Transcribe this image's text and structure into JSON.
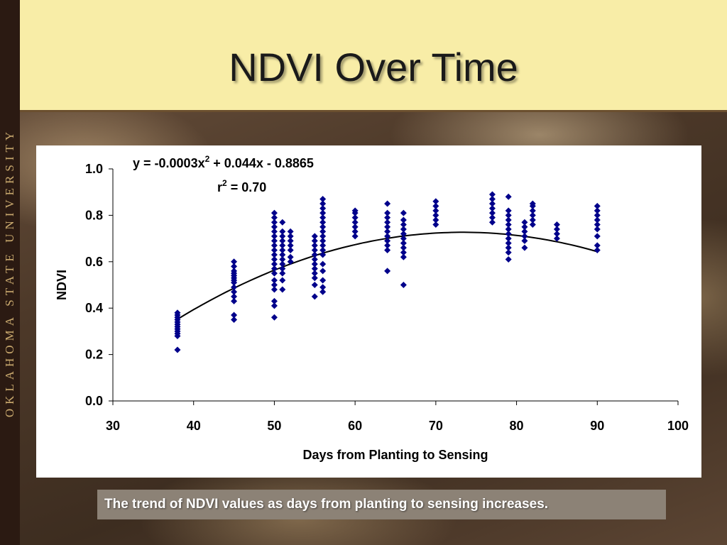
{
  "sidebar": {
    "text": "OKLAHOMA STATE UNIVERSITY"
  },
  "slide": {
    "title": "NDVI Over Time",
    "caption": "The trend of NDVI values as days from planting to sensing increases."
  },
  "colors": {
    "title_band": "#f8eda7",
    "sidebar_bg": "#2b1a12",
    "sidebar_text": "#c9a96e",
    "marker": "#00008b",
    "trendline": "#000000",
    "caption_bg": "#8c8276"
  },
  "chart_data": {
    "type": "scatter",
    "title": "",
    "xlabel": "Days from Planting to Sensing",
    "ylabel": "NDVI",
    "xlim": [
      30,
      100
    ],
    "ylim": [
      0.0,
      1.0
    ],
    "xticks": [
      "30",
      "40",
      "50",
      "60",
      "70",
      "80",
      "90",
      "100"
    ],
    "yticks": [
      "0.0",
      "0.2",
      "0.4",
      "0.6",
      "0.8",
      "1.0"
    ],
    "grid": false,
    "marker": "diamond",
    "annotation": {
      "equation_prefix": "y = -0.0003x",
      "equation_sup": "2",
      "equation_suffix": " + 0.044x - 0.8865",
      "r2_prefix": "r",
      "r2_sup": "2",
      "r2_suffix": " = 0.70"
    },
    "trendline": {
      "type": "polynomial",
      "coefficients": [
        -0.0003,
        0.044,
        -0.8865
      ],
      "x_range": [
        38,
        90
      ]
    },
    "series": [
      {
        "x": 38,
        "y": [
          0.22,
          0.28,
          0.29,
          0.3,
          0.31,
          0.32,
          0.33,
          0.34,
          0.35,
          0.36,
          0.37,
          0.38
        ]
      },
      {
        "x": 45,
        "y": [
          0.35,
          0.37,
          0.43,
          0.45,
          0.47,
          0.49,
          0.51,
          0.52,
          0.53,
          0.54,
          0.55,
          0.56,
          0.58,
          0.6
        ]
      },
      {
        "x": 50,
        "y": [
          0.36,
          0.41,
          0.43,
          0.48,
          0.5,
          0.52,
          0.55,
          0.57,
          0.59,
          0.61,
          0.63,
          0.65,
          0.67,
          0.69,
          0.71,
          0.73,
          0.75,
          0.77,
          0.79,
          0.81
        ]
      },
      {
        "x": 51,
        "y": [
          0.48,
          0.52,
          0.55,
          0.57,
          0.59,
          0.61,
          0.63,
          0.65,
          0.67,
          0.69,
          0.71,
          0.73,
          0.77
        ]
      },
      {
        "x": 52,
        "y": [
          0.6,
          0.62,
          0.65,
          0.67,
          0.69,
          0.71,
          0.73
        ]
      },
      {
        "x": 55,
        "y": [
          0.45,
          0.5,
          0.53,
          0.55,
          0.57,
          0.59,
          0.61,
          0.63,
          0.65,
          0.67,
          0.69,
          0.71
        ]
      },
      {
        "x": 56,
        "y": [
          0.47,
          0.49,
          0.52,
          0.56,
          0.59,
          0.63,
          0.65,
          0.67,
          0.69,
          0.71,
          0.73,
          0.75,
          0.77,
          0.79,
          0.81,
          0.83,
          0.85,
          0.87
        ]
      },
      {
        "x": 60,
        "y": [
          0.71,
          0.73,
          0.75,
          0.77,
          0.79,
          0.81,
          0.82
        ]
      },
      {
        "x": 64,
        "y": [
          0.56,
          0.65,
          0.67,
          0.69,
          0.71,
          0.73,
          0.75,
          0.77,
          0.79,
          0.81,
          0.85
        ]
      },
      {
        "x": 66,
        "y": [
          0.5,
          0.62,
          0.64,
          0.66,
          0.68,
          0.7,
          0.72,
          0.74,
          0.76,
          0.78,
          0.81
        ]
      },
      {
        "x": 70,
        "y": [
          0.76,
          0.78,
          0.8,
          0.82,
          0.84,
          0.86
        ]
      },
      {
        "x": 77,
        "y": [
          0.77,
          0.79,
          0.81,
          0.83,
          0.85,
          0.87,
          0.89
        ]
      },
      {
        "x": 79,
        "y": [
          0.61,
          0.64,
          0.66,
          0.68,
          0.7,
          0.72,
          0.74,
          0.76,
          0.78,
          0.8,
          0.82,
          0.88
        ]
      },
      {
        "x": 81,
        "y": [
          0.66,
          0.69,
          0.71,
          0.73,
          0.75,
          0.77
        ]
      },
      {
        "x": 82,
        "y": [
          0.76,
          0.78,
          0.8,
          0.82,
          0.84,
          0.85
        ]
      },
      {
        "x": 85,
        "y": [
          0.7,
          0.72,
          0.74,
          0.76
        ]
      },
      {
        "x": 90,
        "y": [
          0.65,
          0.67,
          0.71,
          0.74,
          0.76,
          0.78,
          0.8,
          0.82,
          0.84
        ]
      }
    ]
  }
}
